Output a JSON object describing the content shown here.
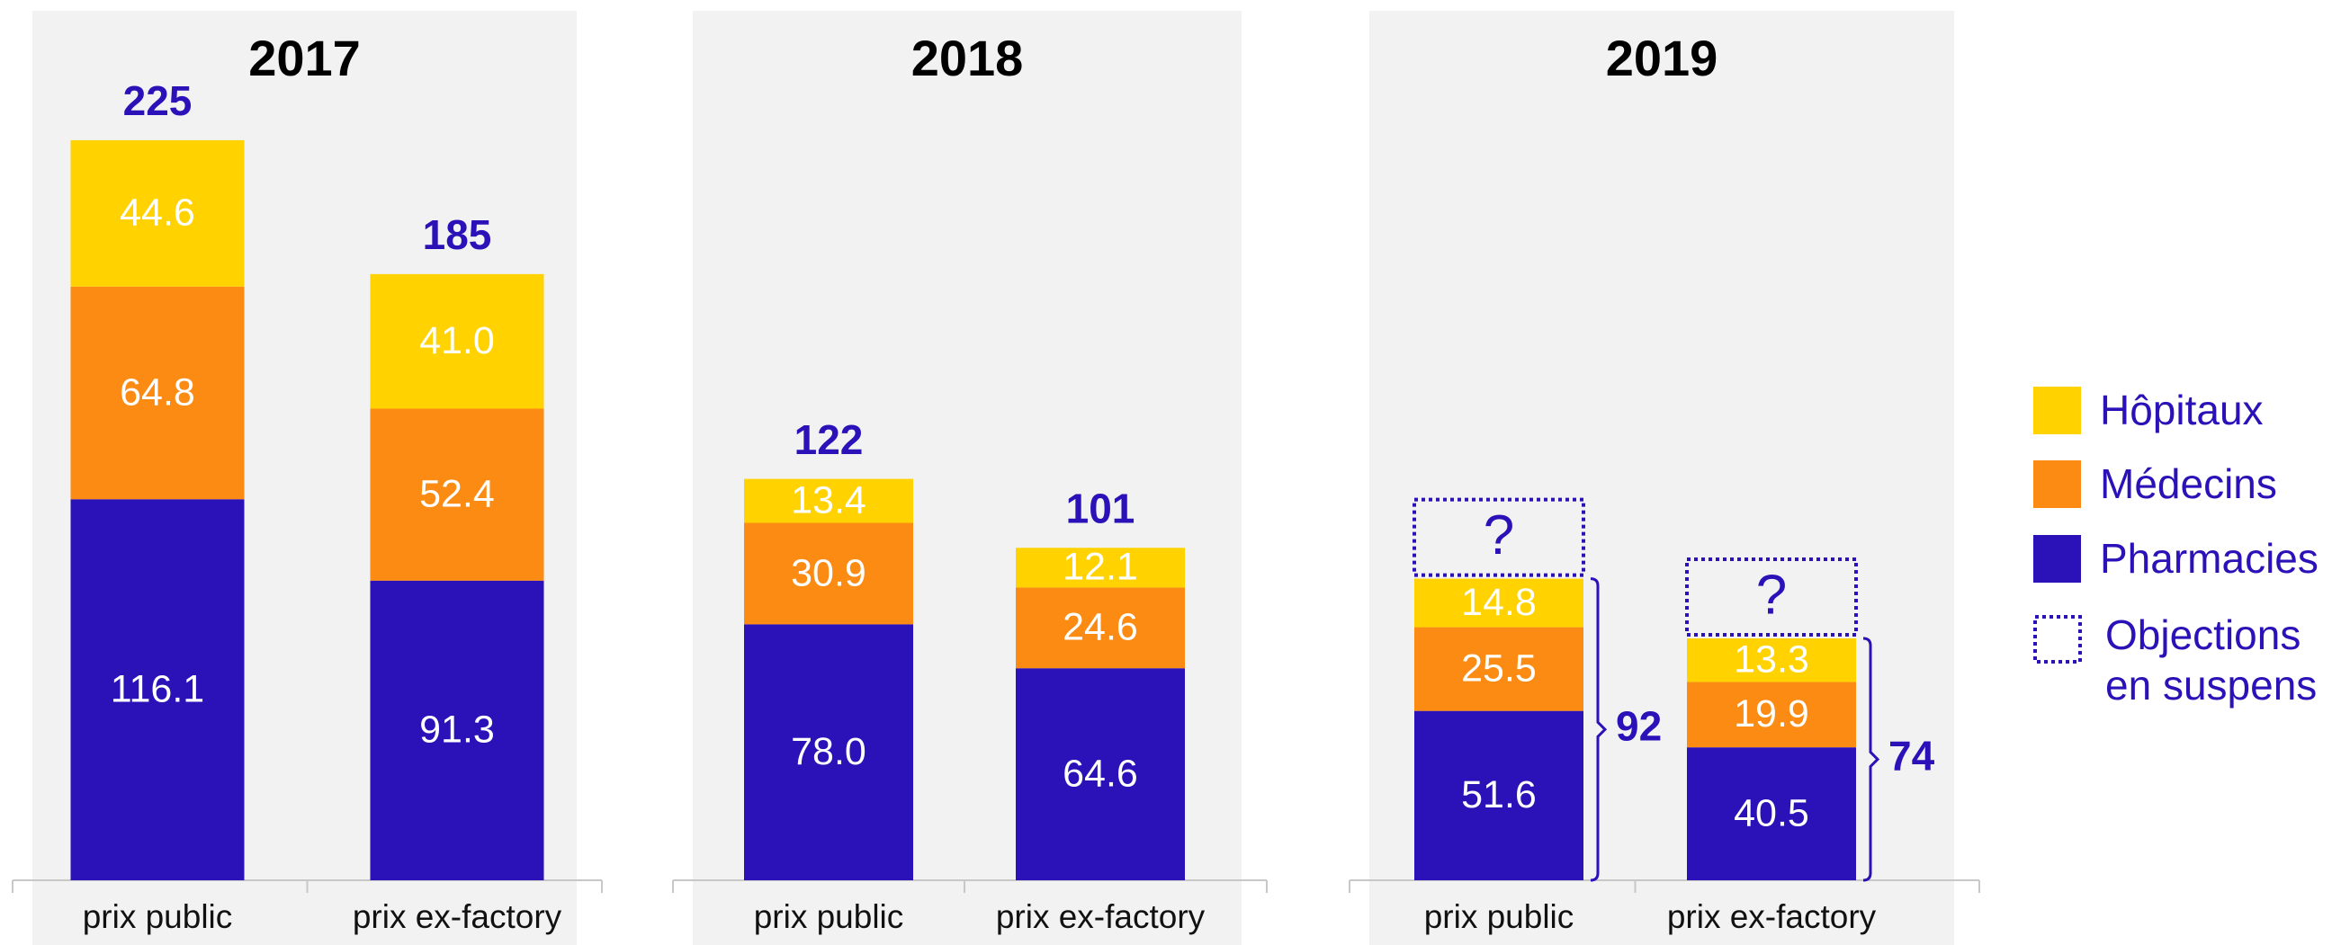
{
  "chart_data": [
    {
      "type": "bar",
      "stacked": true,
      "title": "2017",
      "categories": [
        "prix public",
        "prix ex-factory"
      ],
      "ylim": [
        0,
        240
      ],
      "series": [
        {
          "name": "Pharmacies",
          "color": "#2a12b8",
          "values": [
            116.1,
            91.3
          ],
          "value_labels": [
            "116.1",
            "91.3"
          ]
        },
        {
          "name": "Médecins",
          "color": "#fb8b13",
          "values": [
            64.8,
            52.4
          ],
          "value_labels": [
            "64.8",
            "52.4"
          ]
        },
        {
          "name": "Hôpitaux",
          "color": "#ffd200",
          "values": [
            44.6,
            41.0
          ],
          "value_labels": [
            "44.6",
            "41.0"
          ]
        }
      ],
      "totals": [
        225,
        185
      ]
    },
    {
      "type": "bar",
      "stacked": true,
      "title": "2018",
      "categories": [
        "prix public",
        "prix ex-factory"
      ],
      "ylim": [
        0,
        240
      ],
      "series": [
        {
          "name": "Pharmacies",
          "color": "#2a12b8",
          "values": [
            78.0,
            64.6
          ],
          "value_labels": [
            "78.0",
            "64.6"
          ]
        },
        {
          "name": "Médecins",
          "color": "#fb8b13",
          "values": [
            30.9,
            24.6
          ],
          "value_labels": [
            "30.9",
            "24.6"
          ]
        },
        {
          "name": "Hôpitaux",
          "color": "#ffd200",
          "values": [
            13.4,
            12.1
          ],
          "value_labels": [
            "13.4",
            "12.1"
          ]
        }
      ],
      "totals": [
        122,
        101
      ]
    },
    {
      "type": "bar",
      "stacked": true,
      "title": "2019",
      "categories": [
        "prix public",
        "prix ex-factory"
      ],
      "ylim": [
        0,
        240
      ],
      "series": [
        {
          "name": "Pharmacies",
          "color": "#2a12b8",
          "values": [
            51.6,
            40.5
          ],
          "value_labels": [
            "51.6",
            "40.5"
          ]
        },
        {
          "name": "Médecins",
          "color": "#fb8b13",
          "values": [
            25.5,
            19.9
          ],
          "value_labels": [
            "25.5",
            "19.9"
          ]
        },
        {
          "name": "Hôpitaux",
          "color": "#ffd200",
          "values": [
            14.8,
            13.3
          ],
          "value_labels": [
            "14.8",
            "13.3"
          ]
        }
      ],
      "totals": [
        92,
        74
      ],
      "pending_name": "Objections en suspens",
      "pending_label": "?"
    }
  ]
}
